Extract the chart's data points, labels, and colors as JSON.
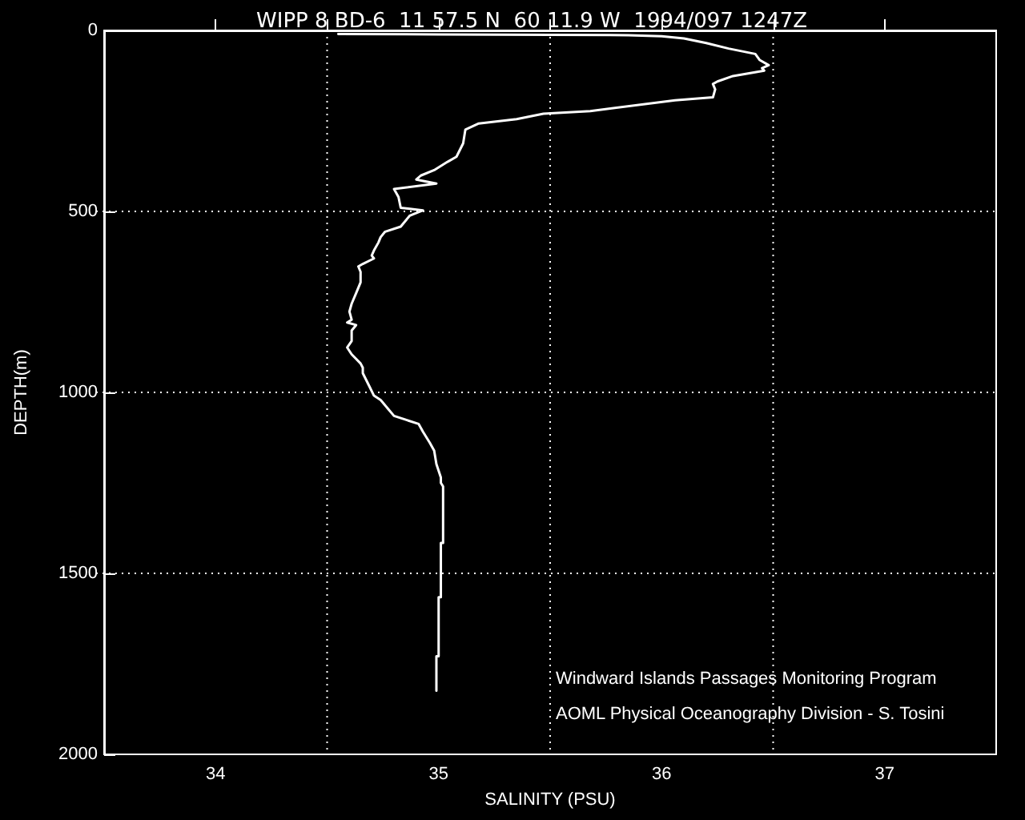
{
  "chart_data": {
    "type": "line",
    "title": "WIPP 8 BD-6  11 57.5 N  60 11.9 W  1994/097 1247Z",
    "xlabel": "SALINITY (PSU)",
    "ylabel": "DEPTH(m)",
    "annotations": [
      "Windward Islands Passages Monitoring Program",
      "AOML Physical Oceanography Division - S. Tosini"
    ],
    "x": [
      34.55,
      35.0,
      35.5,
      35.85,
      36.0,
      36.1,
      36.2,
      36.3,
      36.42,
      36.44,
      36.48,
      36.45,
      36.46,
      36.32,
      36.25,
      36.23,
      36.24,
      36.23,
      36.06,
      35.68,
      35.47,
      35.35,
      35.18,
      35.12,
      35.11,
      35.08,
      35.04,
      34.98,
      34.92,
      34.9,
      34.99,
      34.8,
      34.82,
      34.83,
      34.93,
      34.87,
      34.83,
      34.76,
      34.74,
      34.73,
      34.71,
      34.7,
      34.71,
      34.66,
      34.64,
      34.65,
      34.65,
      34.63,
      34.61,
      34.6,
      34.61,
      34.59,
      34.63,
      34.61,
      34.61,
      34.59,
      34.61,
      34.65,
      34.66,
      34.66,
      34.69,
      34.71,
      34.74,
      34.77,
      34.8,
      34.85,
      34.91,
      34.93,
      34.96,
      34.98,
      34.99,
      35.01,
      35.01,
      35.02,
      35.02,
      35.01,
      35.01,
      35.0,
      35.0,
      34.99,
      34.99
    ],
    "values": [
      10,
      11,
      12,
      13,
      16,
      22,
      35,
      50,
      65,
      82,
      96,
      104,
      111,
      126,
      141,
      148,
      163,
      185,
      193,
      223,
      230,
      245,
      257,
      274,
      312,
      349,
      363,
      386,
      401,
      412,
      423,
      438,
      460,
      490,
      497,
      512,
      542,
      556,
      571,
      586,
      608,
      622,
      630,
      645,
      652,
      667,
      696,
      726,
      755,
      777,
      799,
      807,
      814,
      829,
      858,
      876,
      895,
      920,
      932,
      947,
      984,
      1009,
      1021,
      1043,
      1065,
      1075,
      1087,
      1109,
      1139,
      1161,
      1198,
      1235,
      1250,
      1260,
      1416,
      1416,
      1566,
      1566,
      1729,
      1729,
      1824
    ],
    "color": "#ffffff",
    "marker": "none",
    "line_style": "solid",
    "xlim": [
      33.5,
      37.5
    ],
    "xticks": [
      34,
      {
        "value": 34.5,
        "label": null
      },
      35,
      {
        "value": 35.5,
        "label": null
      },
      36,
      {
        "value": 36.5,
        "label": null
      },
      37
    ],
    "ylim": [
      2000,
      0
    ],
    "yticks": [
      0,
      500,
      1000,
      1500,
      2000
    ],
    "grid": true
  }
}
